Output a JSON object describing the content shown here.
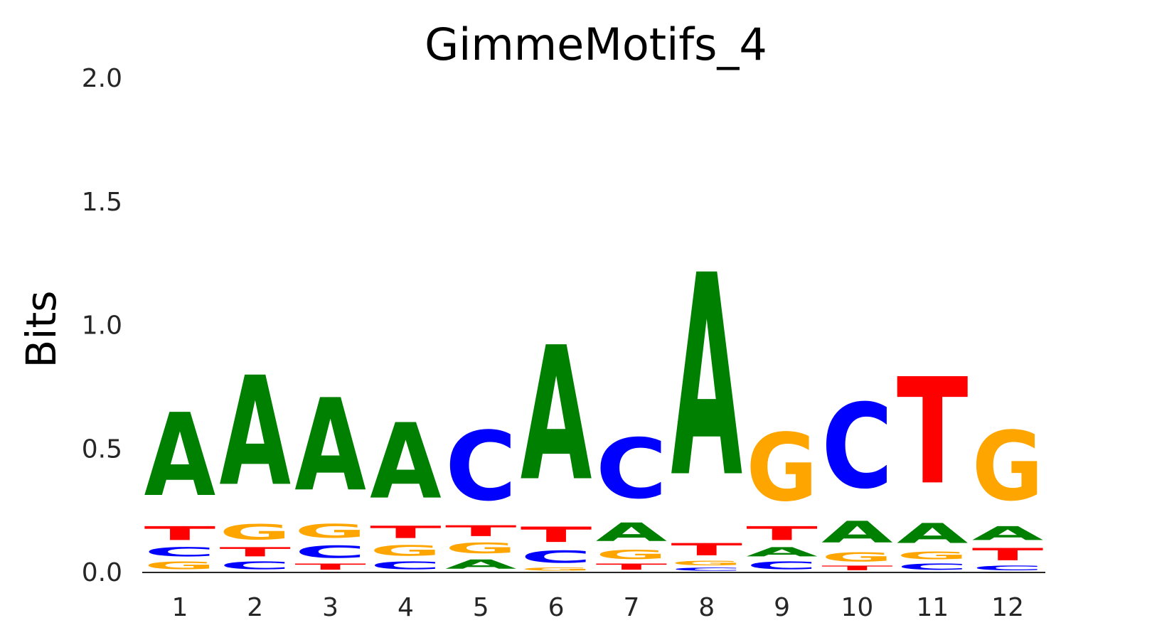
{
  "chart_data": {
    "type": "sequence-logo",
    "title": "GimmeMotifs_4",
    "ylabel": "Bits",
    "xlabel": "",
    "ylim": [
      0,
      2
    ],
    "yticks": [
      "0.0",
      "0.5",
      "1.0",
      "1.5",
      "2.0"
    ],
    "ytick_values": [
      0,
      0.5,
      1,
      1.5,
      2
    ],
    "grid": false,
    "colors": {
      "A": "#008000",
      "C": "#0000ff",
      "G": "#ffa500",
      "T": "#ff0000"
    },
    "positions": [
      {
        "label": "1",
        "stack": [
          {
            "base": "G",
            "bits": 0.05
          },
          {
            "base": "C",
            "bits": 0.06
          },
          {
            "base": "T",
            "bits": 0.09
          },
          {
            "base": "A",
            "bits": 0.54
          }
        ]
      },
      {
        "label": "2",
        "stack": [
          {
            "base": "C",
            "bits": 0.05
          },
          {
            "base": "T",
            "bits": 0.06
          },
          {
            "base": "G",
            "bits": 0.1
          },
          {
            "base": "A",
            "bits": 0.71
          }
        ]
      },
      {
        "label": "3",
        "stack": [
          {
            "base": "T",
            "bits": 0.04
          },
          {
            "base": "C",
            "bits": 0.08
          },
          {
            "base": "G",
            "bits": 0.09
          },
          {
            "base": "A",
            "bits": 0.6
          }
        ]
      },
      {
        "label": "4",
        "stack": [
          {
            "base": "C",
            "bits": 0.05
          },
          {
            "base": "G",
            "bits": 0.07
          },
          {
            "base": "T",
            "bits": 0.08
          },
          {
            "base": "A",
            "bits": 0.49
          }
        ]
      },
      {
        "label": "5",
        "stack": [
          {
            "base": "A",
            "bits": 0.06
          },
          {
            "base": "G",
            "bits": 0.07
          },
          {
            "base": "T",
            "bits": 0.07
          },
          {
            "base": "C",
            "bits": 0.45
          }
        ]
      },
      {
        "label": "6",
        "stack": [
          {
            "base": "G",
            "bits": 0.02
          },
          {
            "base": "C",
            "bits": 0.08
          },
          {
            "base": "T",
            "bits": 0.1
          },
          {
            "base": "A",
            "bits": 0.87
          }
        ]
      },
      {
        "label": "7",
        "stack": [
          {
            "base": "T",
            "bits": 0.04
          },
          {
            "base": "G",
            "bits": 0.06
          },
          {
            "base": "A",
            "bits": 0.12
          },
          {
            "base": "C",
            "bits": 0.39
          }
        ]
      },
      {
        "label": "8",
        "stack": [
          {
            "base": "C",
            "bits": 0.02
          },
          {
            "base": "G",
            "bits": 0.03
          },
          {
            "base": "T",
            "bits": 0.08
          },
          {
            "base": "A",
            "bits": 1.31
          }
        ]
      },
      {
        "label": "9",
        "stack": [
          {
            "base": "C",
            "bits": 0.05
          },
          {
            "base": "A",
            "bits": 0.06
          },
          {
            "base": "T",
            "bits": 0.09
          },
          {
            "base": "G",
            "bits": 0.44
          }
        ]
      },
      {
        "label": "10",
        "stack": [
          {
            "base": "T",
            "bits": 0.03
          },
          {
            "base": "G",
            "bits": 0.06
          },
          {
            "base": "A",
            "bits": 0.14
          },
          {
            "base": "C",
            "bits": 0.55
          }
        ]
      },
      {
        "label": "11",
        "stack": [
          {
            "base": "C",
            "bits": 0.04
          },
          {
            "base": "G",
            "bits": 0.05
          },
          {
            "base": "A",
            "bits": 0.13
          },
          {
            "base": "T",
            "bits": 0.69
          }
        ]
      },
      {
        "label": "12",
        "stack": [
          {
            "base": "C",
            "bits": 0.03
          },
          {
            "base": "T",
            "bits": 0.08
          },
          {
            "base": "A",
            "bits": 0.09
          },
          {
            "base": "G",
            "bits": 0.45
          }
        ]
      }
    ]
  }
}
